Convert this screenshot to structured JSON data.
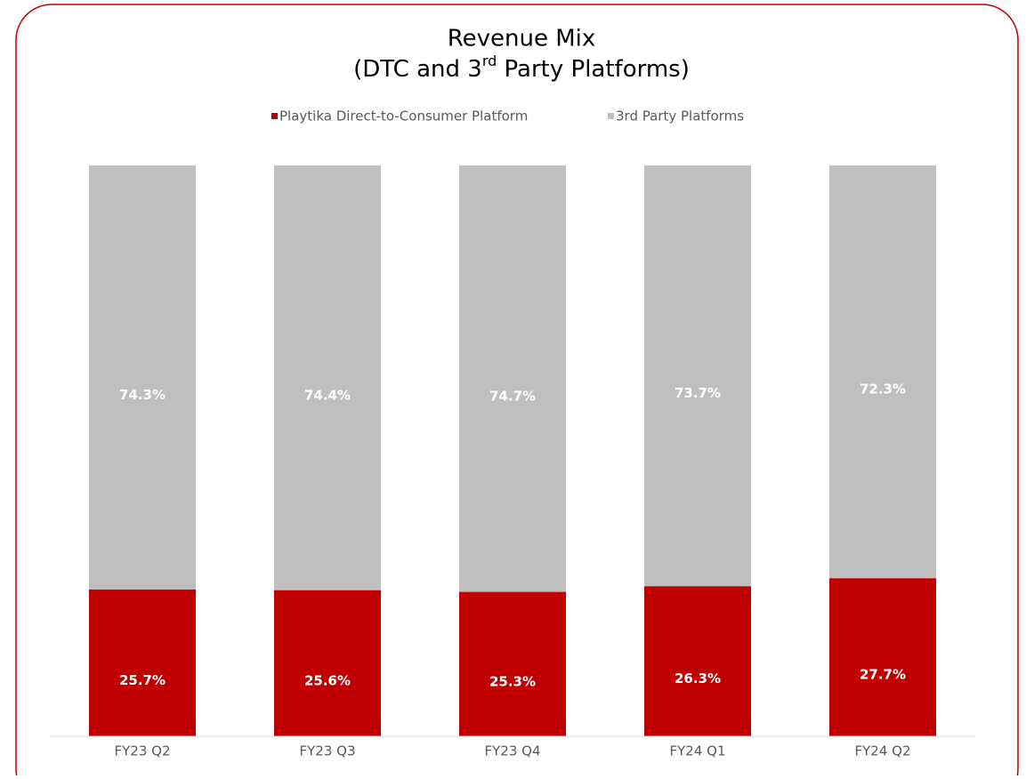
{
  "chart_data": {
    "type": "stacked_bar",
    "title": "Revenue Mix",
    "subtitle_parts": [
      "(DTC and 3",
      "rd",
      " Party Platforms)"
    ],
    "categories": [
      "FY23 Q2",
      "FY23 Q3",
      "FY23 Q4",
      "FY24 Q1",
      "FY24 Q2"
    ],
    "series": [
      {
        "name": "Playtika Direct-to-Consumer Platform",
        "color": "#c00000",
        "values": [
          25.7,
          25.6,
          25.3,
          26.3,
          27.7
        ],
        "value_labels": [
          "25.7%",
          "25.6%",
          "25.3%",
          "26.3%",
          "27.7%"
        ]
      },
      {
        "name": "3rd Party Platforms",
        "color": "#bfbfbf",
        "values": [
          74.3,
          74.4,
          74.7,
          73.7,
          72.3
        ],
        "value_labels": [
          "74.3%",
          "74.4%",
          "74.7%",
          "73.7%",
          "72.3%"
        ]
      }
    ],
    "ylim": [
      0,
      100
    ],
    "legend": "top"
  }
}
